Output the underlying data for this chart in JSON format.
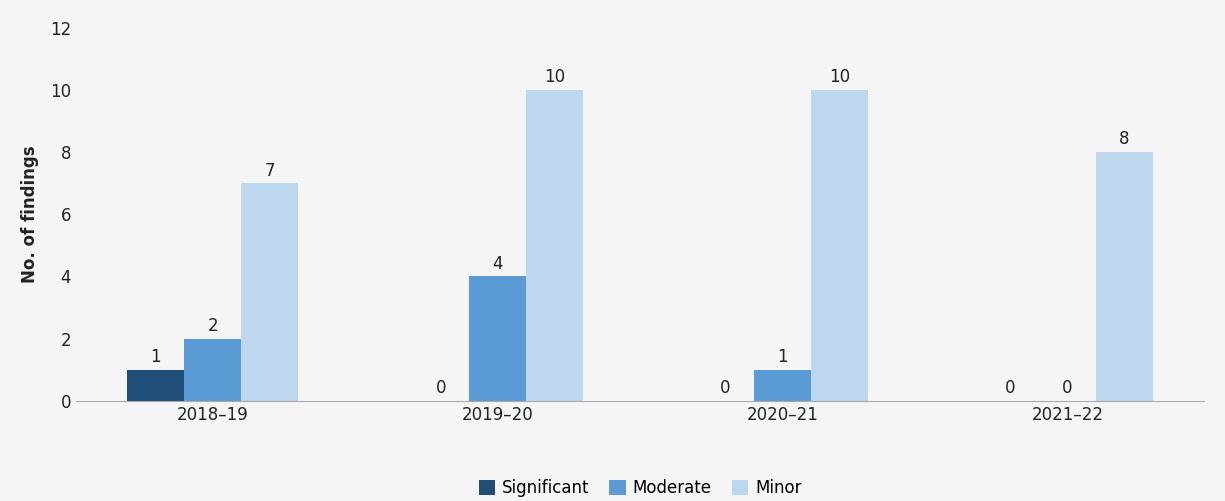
{
  "categories": [
    "2018–19",
    "2019–20",
    "2020–21",
    "2021–22"
  ],
  "significant": [
    1,
    0,
    0,
    0
  ],
  "moderate": [
    2,
    4,
    1,
    0
  ],
  "minor": [
    7,
    10,
    10,
    8
  ],
  "color_significant": "#1f4e79",
  "color_moderate": "#5b9bd5",
  "color_minor": "#bdd7ee",
  "ylabel": "No. of findings",
  "ylim": [
    0,
    12
  ],
  "yticks": [
    0,
    2,
    4,
    6,
    8,
    10,
    12
  ],
  "legend_labels": [
    "Significant",
    "Moderate",
    "Minor"
  ],
  "bar_width": 0.2,
  "tick_fontsize": 12,
  "ylabel_fontsize": 12,
  "legend_fontsize": 12,
  "background_color": "#f5f5f5",
  "value_label_fontsize": 12
}
